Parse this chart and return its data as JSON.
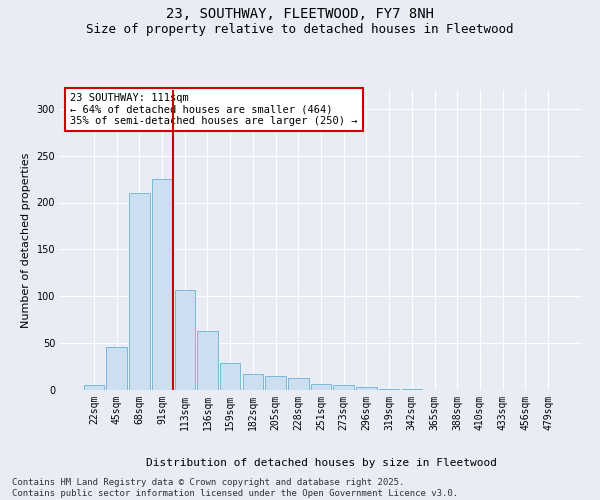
{
  "title": "23, SOUTHWAY, FLEETWOOD, FY7 8NH",
  "subtitle": "Size of property relative to detached houses in Fleetwood",
  "xlabel": "Distribution of detached houses by size in Fleetwood",
  "ylabel": "Number of detached properties",
  "categories": [
    "22sqm",
    "45sqm",
    "68sqm",
    "91sqm",
    "113sqm",
    "136sqm",
    "159sqm",
    "182sqm",
    "205sqm",
    "228sqm",
    "251sqm",
    "273sqm",
    "296sqm",
    "319sqm",
    "342sqm",
    "365sqm",
    "388sqm",
    "410sqm",
    "433sqm",
    "456sqm",
    "479sqm"
  ],
  "values": [
    5,
    46,
    210,
    225,
    107,
    63,
    29,
    17,
    15,
    13,
    6,
    5,
    3,
    1,
    1,
    0,
    0,
    0,
    0,
    0,
    0
  ],
  "bar_color": "#ccdff0",
  "bar_edge_color": "#7db8d8",
  "background_color": "#e8ecf5",
  "grid_color": "#ffffff",
  "annotation_text": "23 SOUTHWAY: 111sqm\n← 64% of detached houses are smaller (464)\n35% of semi-detached houses are larger (250) →",
  "annotation_box_facecolor": "#ffffff",
  "annotation_box_edgecolor": "#cc0000",
  "vline_color": "#cc0000",
  "vline_x": 3.5,
  "ylim": [
    0,
    320
  ],
  "yticks": [
    0,
    50,
    100,
    150,
    200,
    250,
    300
  ],
  "title_fontsize": 10,
  "subtitle_fontsize": 9,
  "axis_label_fontsize": 8,
  "tick_fontsize": 7,
  "annotation_fontsize": 7.5,
  "footnote_fontsize": 6.5,
  "footnote": "Contains HM Land Registry data © Crown copyright and database right 2025.\nContains public sector information licensed under the Open Government Licence v3.0."
}
